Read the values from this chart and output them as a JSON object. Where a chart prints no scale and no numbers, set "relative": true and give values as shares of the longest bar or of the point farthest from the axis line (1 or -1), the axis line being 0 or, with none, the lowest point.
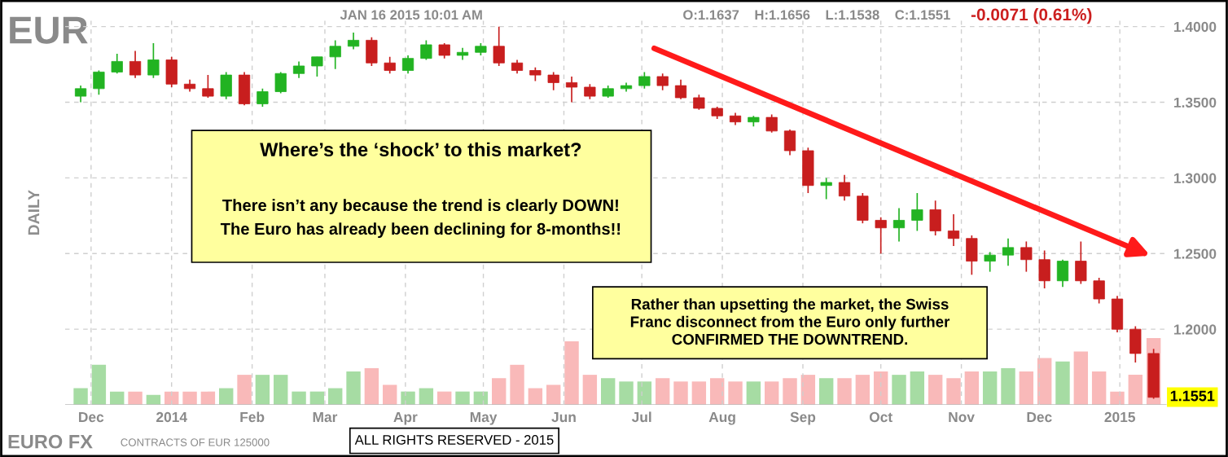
{
  "chart_data": [
    {
      "type": "candlestick",
      "title": "EUR",
      "ylabel": "DAILY",
      "x": [
        "2013-11-27",
        "2013-12-04",
        "2013-12-11",
        "2013-12-18",
        "2013-12-25",
        "2014-01-01",
        "2014-01-08",
        "2014-01-15",
        "2014-01-22",
        "2014-01-29",
        "2014-02-05",
        "2014-02-12",
        "2014-02-19",
        "2014-02-26",
        "2014-03-05",
        "2014-03-12",
        "2014-03-19",
        "2014-03-26",
        "2014-04-02",
        "2014-04-09",
        "2014-04-16",
        "2014-04-23",
        "2014-04-30",
        "2014-05-07",
        "2014-05-14",
        "2014-05-21",
        "2014-05-28",
        "2014-06-04",
        "2014-06-11",
        "2014-06-18",
        "2014-06-25",
        "2014-07-02",
        "2014-07-09",
        "2014-07-16",
        "2014-07-23",
        "2014-07-30",
        "2014-08-06",
        "2014-08-13",
        "2014-08-20",
        "2014-08-27",
        "2014-09-03",
        "2014-09-10",
        "2014-09-17",
        "2014-09-24",
        "2014-10-01",
        "2014-10-08",
        "2014-10-15",
        "2014-10-22",
        "2014-10-29",
        "2014-11-05",
        "2014-11-12",
        "2014-11-19",
        "2014-11-26",
        "2014-12-03",
        "2014-12-10",
        "2014-12-17",
        "2014-12-24",
        "2014-12-31",
        "2015-01-07",
        "2015-01-14"
      ],
      "ohlc": [
        [
          1.354,
          1.361,
          1.35,
          1.359
        ],
        [
          1.359,
          1.371,
          1.355,
          1.37
        ],
        [
          1.37,
          1.382,
          1.369,
          1.377
        ],
        [
          1.377,
          1.384,
          1.366,
          1.368
        ],
        [
          1.368,
          1.389,
          1.366,
          1.378
        ],
        [
          1.378,
          1.38,
          1.36,
          1.362
        ],
        [
          1.362,
          1.365,
          1.357,
          1.359
        ],
        [
          1.359,
          1.368,
          1.353,
          1.354
        ],
        [
          1.354,
          1.37,
          1.352,
          1.368
        ],
        [
          1.368,
          1.37,
          1.348,
          1.349
        ],
        [
          1.349,
          1.359,
          1.347,
          1.357
        ],
        [
          1.357,
          1.37,
          1.356,
          1.369
        ],
        [
          1.369,
          1.377,
          1.366,
          1.374
        ],
        [
          1.374,
          1.38,
          1.367,
          1.38
        ],
        [
          1.38,
          1.391,
          1.372,
          1.387
        ],
        [
          1.387,
          1.396,
          1.385,
          1.391
        ],
        [
          1.391,
          1.393,
          1.374,
          1.376
        ],
        [
          1.376,
          1.38,
          1.369,
          1.371
        ],
        [
          1.371,
          1.381,
          1.369,
          1.379
        ],
        [
          1.379,
          1.391,
          1.378,
          1.388
        ],
        [
          1.388,
          1.389,
          1.379,
          1.381
        ],
        [
          1.381,
          1.386,
          1.378,
          1.383
        ],
        [
          1.383,
          1.389,
          1.381,
          1.387
        ],
        [
          1.387,
          1.4,
          1.374,
          1.376
        ],
        [
          1.376,
          1.378,
          1.369,
          1.371
        ],
        [
          1.371,
          1.373,
          1.364,
          1.368
        ],
        [
          1.368,
          1.37,
          1.358,
          1.363
        ],
        [
          1.363,
          1.367,
          1.35,
          1.36
        ],
        [
          1.36,
          1.362,
          1.352,
          1.354
        ],
        [
          1.354,
          1.361,
          1.353,
          1.359
        ],
        [
          1.359,
          1.363,
          1.357,
          1.361
        ],
        [
          1.361,
          1.37,
          1.359,
          1.367
        ],
        [
          1.367,
          1.369,
          1.358,
          1.361
        ],
        [
          1.361,
          1.365,
          1.352,
          1.353
        ],
        [
          1.353,
          1.355,
          1.345,
          1.346
        ],
        [
          1.346,
          1.347,
          1.339,
          1.341
        ],
        [
          1.341,
          1.343,
          1.335,
          1.337
        ],
        [
          1.337,
          1.341,
          1.334,
          1.34
        ],
        [
          1.34,
          1.342,
          1.33,
          1.331
        ],
        [
          1.331,
          1.332,
          1.315,
          1.318
        ],
        [
          1.318,
          1.32,
          1.29,
          1.295
        ],
        [
          1.295,
          1.3,
          1.286,
          1.297
        ],
        [
          1.297,
          1.302,
          1.285,
          1.288
        ],
        [
          1.288,
          1.29,
          1.27,
          1.272
        ],
        [
          1.272,
          1.274,
          1.25,
          1.267
        ],
        [
          1.267,
          1.28,
          1.258,
          1.272
        ],
        [
          1.272,
          1.29,
          1.265,
          1.279
        ],
        [
          1.279,
          1.285,
          1.262,
          1.265
        ],
        [
          1.265,
          1.276,
          1.255,
          1.26
        ],
        [
          1.26,
          1.262,
          1.236,
          1.245
        ],
        [
          1.245,
          1.251,
          1.238,
          1.249
        ],
        [
          1.249,
          1.26,
          1.242,
          1.254
        ],
        [
          1.254,
          1.258,
          1.238,
          1.246
        ],
        [
          1.246,
          1.252,
          1.227,
          1.232
        ],
        [
          1.232,
          1.246,
          1.228,
          1.245
        ],
        [
          1.245,
          1.258,
          1.23,
          1.232
        ],
        [
          1.232,
          1.234,
          1.217,
          1.22
        ],
        [
          1.22,
          1.222,
          1.198,
          1.2
        ],
        [
          1.2,
          1.202,
          1.178,
          1.184
        ],
        [
          1.184,
          1.187,
          1.154,
          1.155
        ]
      ],
      "colors": [
        "#22b322",
        "#22b322",
        "#22b322",
        "#c81e1e",
        "#22b322",
        "#c81e1e",
        "#c81e1e",
        "#c81e1e",
        "#22b322",
        "#c81e1e",
        "#22b322",
        "#22b322",
        "#22b322",
        "#22b322",
        "#22b322",
        "#22b322",
        "#c81e1e",
        "#c81e1e",
        "#22b322",
        "#22b322",
        "#c81e1e",
        "#22b322",
        "#22b322",
        "#c81e1e",
        "#c81e1e",
        "#c81e1e",
        "#c81e1e",
        "#c81e1e",
        "#c81e1e",
        "#22b322",
        "#22b322",
        "#22b322",
        "#c81e1e",
        "#c81e1e",
        "#c81e1e",
        "#c81e1e",
        "#c81e1e",
        "#22b322",
        "#c81e1e",
        "#c81e1e",
        "#c81e1e",
        "#22b322",
        "#c81e1e",
        "#c81e1e",
        "#c81e1e",
        "#22b322",
        "#22b322",
        "#c81e1e",
        "#c81e1e",
        "#c81e1e",
        "#22b322",
        "#22b322",
        "#c81e1e",
        "#c81e1e",
        "#22b322",
        "#c81e1e",
        "#c81e1e",
        "#c81e1e",
        "#c81e1e",
        "#c81e1e"
      ],
      "xlim": [
        "2013-11-21",
        "2015-01-19"
      ],
      "xticks": [
        {
          "value": "2013-12-01",
          "label": "Dec"
        },
        {
          "value": "2014-01-01",
          "label": "2014"
        },
        {
          "value": "2014-02-01",
          "label": "Feb"
        },
        {
          "value": "2014-03-01",
          "label": "Mar"
        },
        {
          "value": "2014-04-01",
          "label": "Apr"
        },
        {
          "value": "2014-05-01",
          "label": "May"
        },
        {
          "value": "2014-06-01",
          "label": "Jun"
        },
        {
          "value": "2014-07-01",
          "label": "Jul"
        },
        {
          "value": "2014-08-01",
          "label": "Aug"
        },
        {
          "value": "2014-09-01",
          "label": "Sep"
        },
        {
          "value": "2014-10-01",
          "label": "Oct"
        },
        {
          "value": "2014-11-01",
          "label": "Nov"
        },
        {
          "value": "2014-12-01",
          "label": "Dec"
        },
        {
          "value": "2015-01-01",
          "label": "2015"
        }
      ],
      "ylim": [
        1.15,
        1.404
      ],
      "yticks": [
        {
          "value": 1.2,
          "label": "1.2000"
        },
        {
          "value": 1.25,
          "label": "1.2500"
        },
        {
          "value": 1.3,
          "label": "1.3000"
        },
        {
          "value": 1.35,
          "label": "1.3500"
        },
        {
          "value": 1.4,
          "label": "1.4000"
        }
      ],
      "grid": true,
      "annotations": [
        "JAN 16 2015 10:01 AM",
        "O:1.1637    H:1.1656    L:1.1538    C:1.1551",
        "-0.0071 (0.61%)",
        "Where’s the ‘shock’ to this market?",
        "There isn’t any because the trend is clearly DOWN!\nThe Euro has already been declining for 8-months!!",
        "Rather than upsetting the market, the Swiss\nFranc disconnect from the Euro only further\nCONFIRMED THE DOWNTREND.",
        "ALL RIGHTS RESERVED - 2015",
        "EURO FX",
        "CONTRACTS OF EUR 125000",
        {
          "text": "1.1551",
          "x": "2015-01-16",
          "y": 1.1551
        }
      ]
    },
    {
      "type": "bar",
      "relative": true,
      "categories": [
        null,
        null,
        null,
        null,
        null,
        null,
        null,
        null,
        null,
        null,
        null,
        null,
        null,
        null,
        null,
        null,
        null,
        null,
        null,
        null,
        null,
        null,
        null,
        null,
        null,
        null,
        null,
        null,
        null,
        null,
        null,
        null,
        null,
        null,
        null,
        null,
        null,
        null,
        null,
        null,
        null,
        null,
        null,
        null,
        null,
        null,
        null,
        null,
        null,
        null,
        null,
        null,
        null,
        null,
        null,
        null,
        null,
        null,
        null,
        null
      ],
      "values": [
        0.25,
        0.6,
        0.2,
        0.2,
        0.15,
        0.2,
        0.2,
        0.2,
        0.25,
        0.45,
        0.45,
        0.45,
        0.2,
        0.2,
        0.25,
        0.5,
        0.55,
        0.3,
        0.2,
        0.25,
        0.2,
        0.2,
        0.2,
        0.4,
        0.6,
        0.25,
        0.3,
        0.95,
        0.45,
        0.4,
        0.35,
        0.35,
        0.4,
        0.35,
        0.35,
        0.4,
        0.35,
        0.35,
        0.35,
        0.4,
        0.45,
        0.4,
        0.4,
        0.45,
        0.5,
        0.45,
        0.5,
        0.45,
        0.4,
        0.5,
        0.5,
        0.55,
        0.5,
        0.7,
        0.65,
        0.8,
        0.5,
        0.2,
        0.45,
        1.0
      ],
      "colors": [
        "#a6dca3",
        "#a6dca3",
        "#a6dca3",
        "#f9b9b9",
        "#a6dca3",
        "#f9b9b9",
        "#f9b9b9",
        "#f9b9b9",
        "#a6dca3",
        "#f9b9b9",
        "#a6dca3",
        "#a6dca3",
        "#a6dca3",
        "#a6dca3",
        "#a6dca3",
        "#a6dca3",
        "#f9b9b9",
        "#f9b9b9",
        "#a6dca3",
        "#a6dca3",
        "#f9b9b9",
        "#a6dca3",
        "#a6dca3",
        "#f9b9b9",
        "#f9b9b9",
        "#f9b9b9",
        "#f9b9b9",
        "#f9b9b9",
        "#f9b9b9",
        "#a6dca3",
        "#a6dca3",
        "#a6dca3",
        "#f9b9b9",
        "#f9b9b9",
        "#f9b9b9",
        "#f9b9b9",
        "#f9b9b9",
        "#a6dca3",
        "#f9b9b9",
        "#f9b9b9",
        "#f9b9b9",
        "#a6dca3",
        "#f9b9b9",
        "#f9b9b9",
        "#f9b9b9",
        "#a6dca3",
        "#a6dca3",
        "#f9b9b9",
        "#f9b9b9",
        "#f9b9b9",
        "#a6dca3",
        "#a6dca3",
        "#f9b9b9",
        "#f9b9b9",
        "#a6dca3",
        "#f9b9b9",
        "#f9b9b9",
        "#f9b9b9",
        "#f9b9b9",
        "#f9b9b9"
      ]
    }
  ]
}
